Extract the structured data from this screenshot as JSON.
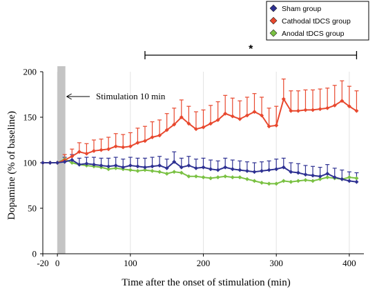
{
  "chart_data": {
    "type": "line",
    "xlabel": "Time after the onset of stimulation (min)",
    "ylabel": "Dopamine (% of baseline)",
    "xlim": [
      -20,
      420
    ],
    "ylim": [
      0,
      200
    ],
    "x_ticks": [
      "-20",
      "0",
      "100",
      "200",
      "300",
      "400"
    ],
    "y_ticks": [
      "0",
      "50",
      "100",
      "150",
      "200"
    ],
    "grid": "vertical",
    "stimulation": {
      "label": "Stimulation 10 min",
      "x_start": 0,
      "x_end": 10
    },
    "significance": {
      "label": "*",
      "x_start": 120,
      "x_end": 410
    },
    "legend": {
      "placement": "top-right"
    },
    "x": [
      -20,
      -10,
      0,
      10,
      20,
      30,
      40,
      50,
      60,
      70,
      80,
      90,
      100,
      110,
      120,
      130,
      140,
      150,
      160,
      170,
      180,
      190,
      200,
      210,
      220,
      230,
      240,
      250,
      260,
      270,
      280,
      290,
      300,
      310,
      320,
      330,
      340,
      350,
      360,
      370,
      380,
      390,
      400,
      410
    ],
    "series": [
      {
        "name": "Sham group",
        "color": "#2e3192",
        "marker": "diamond",
        "values": [
          100,
          100,
          100,
          101,
          103,
          98,
          99,
          98,
          97,
          96,
          97,
          95,
          97,
          96,
          95,
          96,
          97,
          94,
          101,
          95,
          97,
          94,
          95,
          93,
          92,
          95,
          93,
          92,
          91,
          90,
          91,
          92,
          93,
          95,
          90,
          89,
          87,
          86,
          85,
          88,
          84,
          82,
          80,
          79
        ],
        "errors": [
          0,
          0,
          0,
          5,
          6,
          7,
          7,
          8,
          8,
          9,
          9,
          9,
          9,
          9,
          10,
          10,
          10,
          10,
          11,
          10,
          10,
          10,
          10,
          10,
          10,
          10,
          10,
          10,
          10,
          10,
          10,
          10,
          11,
          10,
          10,
          10,
          10,
          10,
          10,
          10,
          10,
          10,
          10,
          10
        ]
      },
      {
        "name": "Cathodal tDCS group",
        "color": "#e8482e",
        "marker": "diamond",
        "values": [
          100,
          100,
          100,
          103,
          107,
          112,
          110,
          113,
          114,
          115,
          118,
          117,
          118,
          122,
          124,
          128,
          130,
          136,
          142,
          150,
          143,
          137,
          139,
          143,
          147,
          154,
          151,
          148,
          152,
          156,
          152,
          140,
          141,
          170,
          157,
          157,
          158,
          158,
          159,
          160,
          163,
          168,
          162,
          157
        ],
        "errors": [
          0,
          0,
          0,
          6,
          8,
          10,
          11,
          12,
          12,
          13,
          14,
          14,
          15,
          16,
          16,
          17,
          17,
          18,
          18,
          19,
          19,
          19,
          19,
          20,
          20,
          20,
          20,
          20,
          20,
          20,
          20,
          20,
          21,
          22,
          22,
          22,
          22,
          22,
          22,
          22,
          22,
          22,
          22,
          22
        ]
      },
      {
        "name": "Anodal tDCS group",
        "color": "#7ac143",
        "marker": "diamond",
        "values": [
          100,
          100,
          100,
          104,
          100,
          98,
          97,
          96,
          95,
          93,
          94,
          93,
          92,
          91,
          92,
          91,
          90,
          88,
          90,
          89,
          85,
          85,
          84,
          83,
          84,
          85,
          84,
          84,
          82,
          80,
          78,
          77,
          77,
          80,
          79,
          80,
          81,
          80,
          82,
          84,
          83,
          82,
          84,
          83
        ]
      }
    ]
  }
}
